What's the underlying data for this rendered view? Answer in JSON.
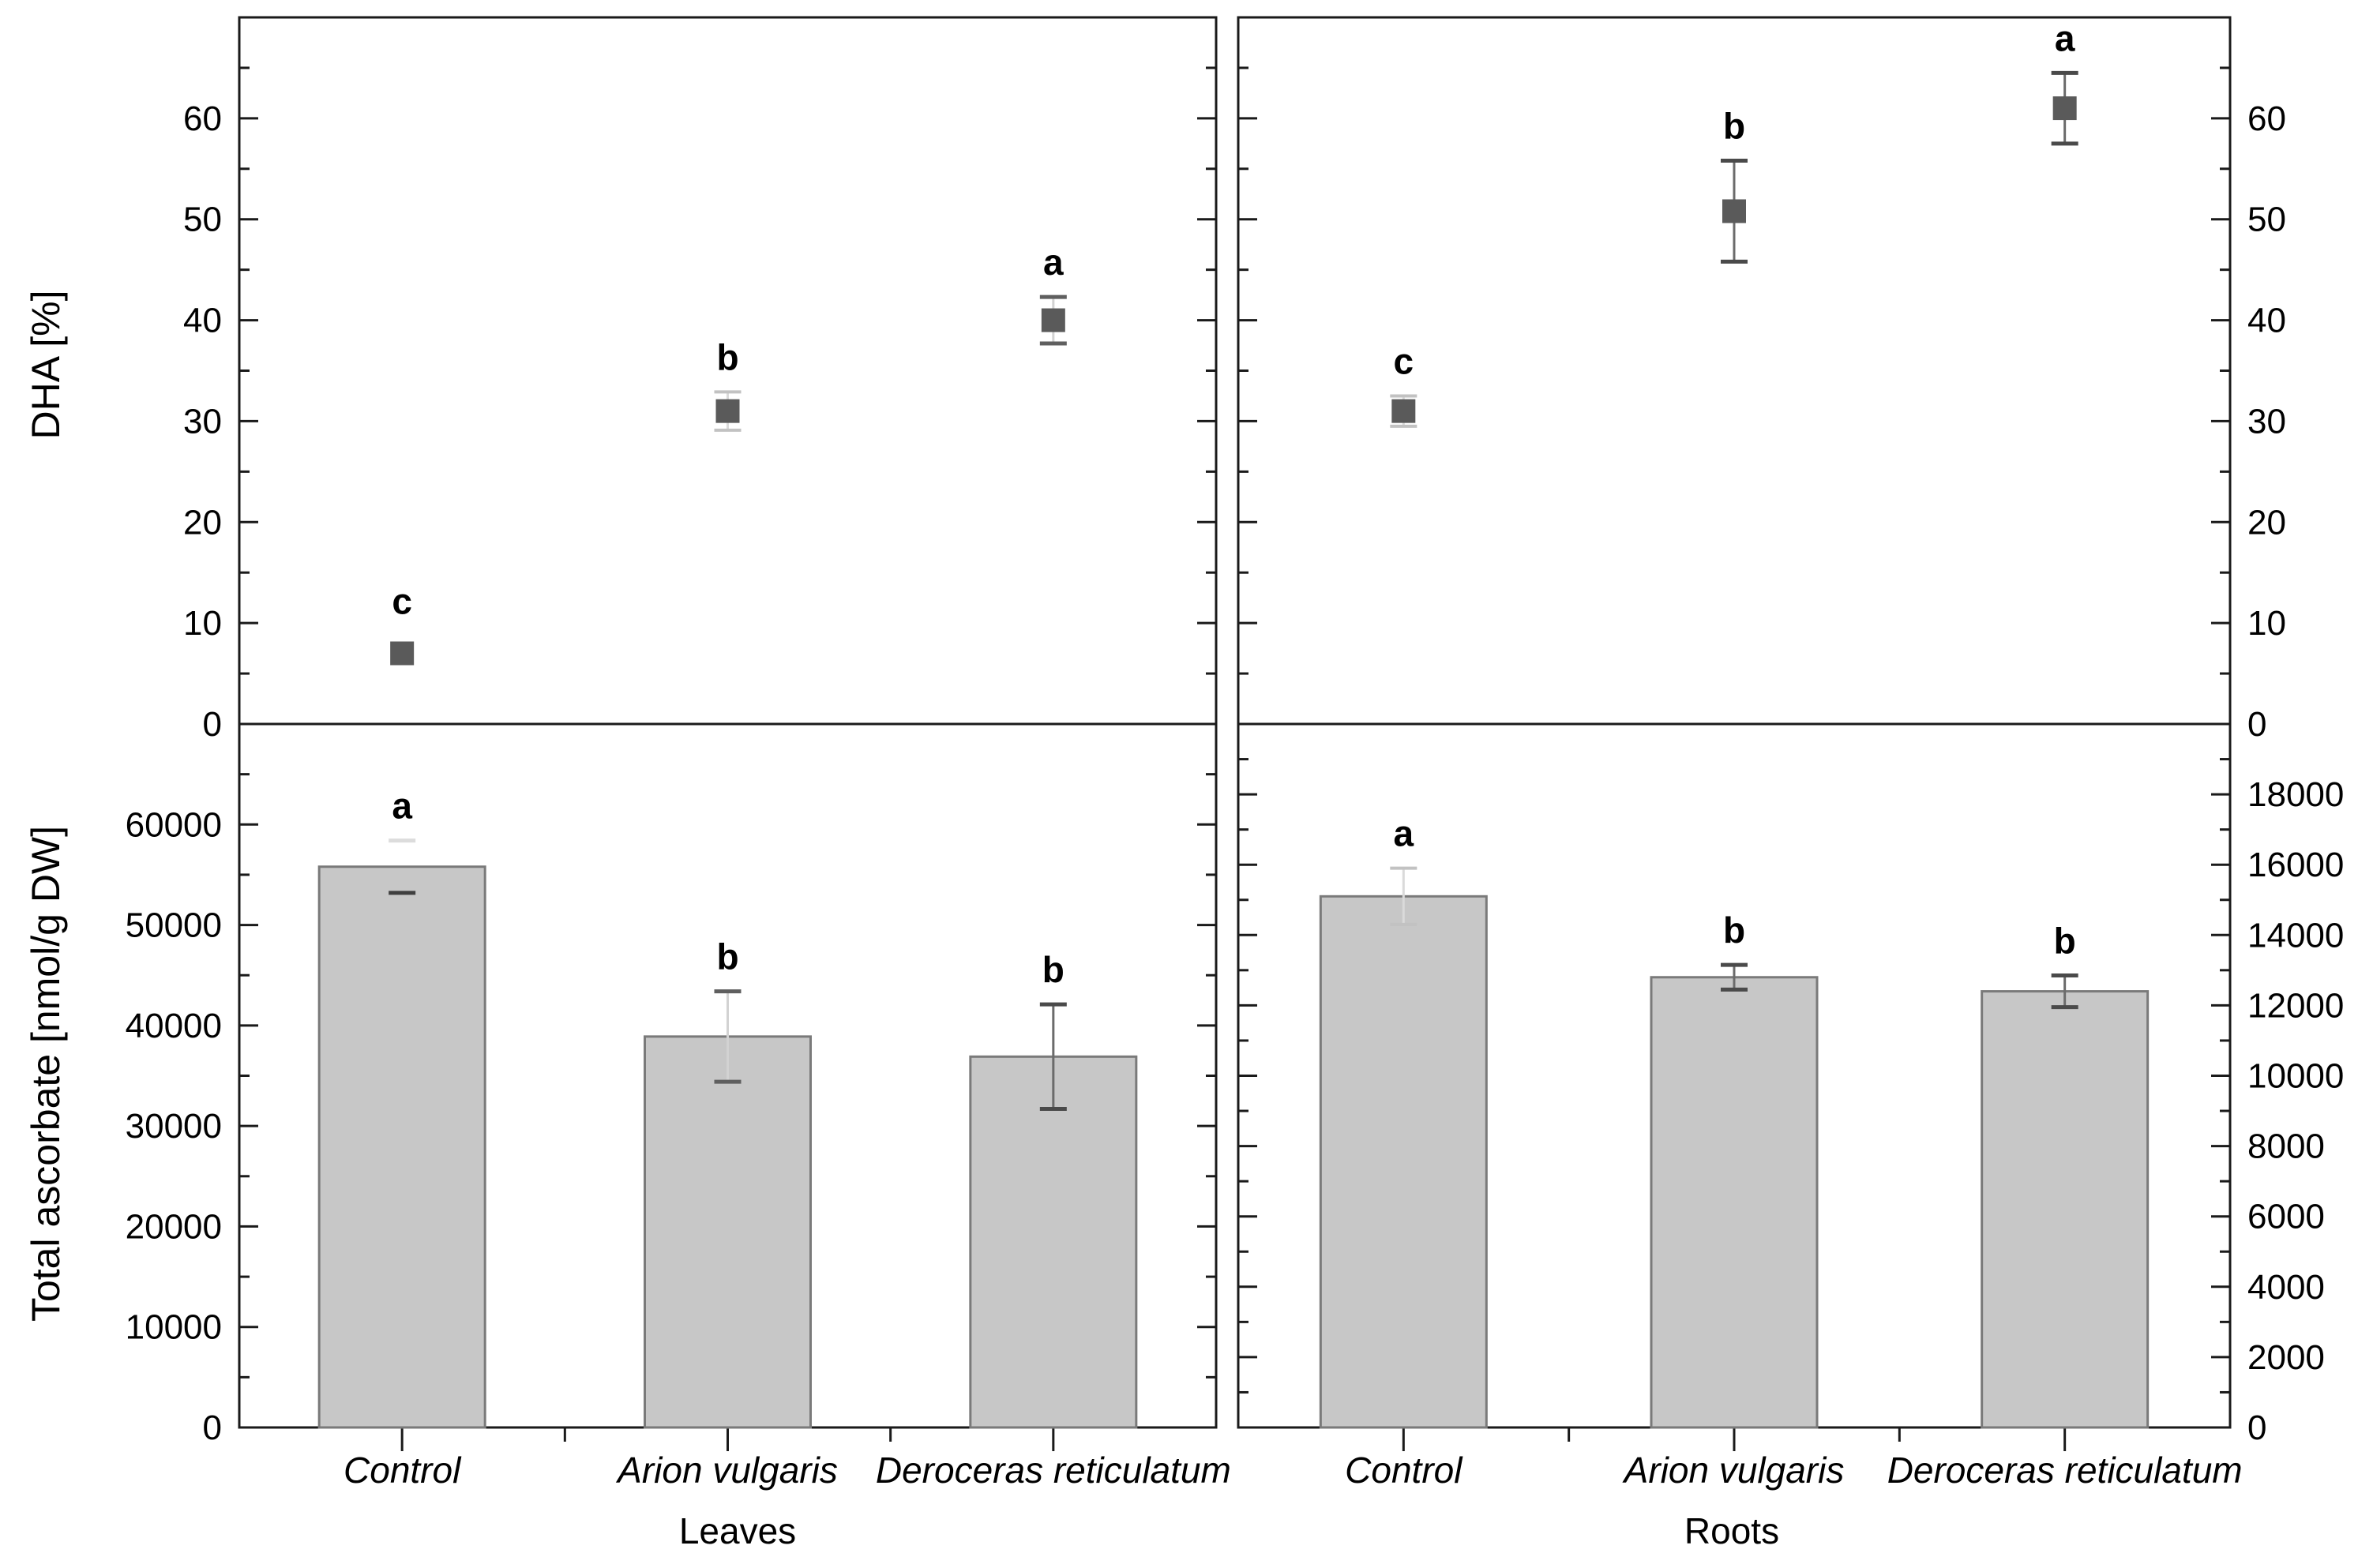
{
  "figure": {
    "background": "#ffffff",
    "axis_color": "#1a1a1a",
    "marker_color": "#5a5a5a",
    "bar_fill": "#c7c7c7",
    "bar_stroke": "#7a7a7a",
    "ylabel_top": "DHA [%]",
    "ylabel_bottom": "Total ascorbate [nmol/g DW]",
    "caption_left": "Leaves",
    "caption_right": "Roots",
    "categories": [
      "Control",
      "Arion vulgaris",
      "Deroceras reticulatum"
    ],
    "significance_letters_meaning": ""
  },
  "chart_data": [
    {
      "id": "dha-leaves",
      "type": "scatter",
      "row": "top",
      "col": "left",
      "group": "Leaves",
      "ylabel": "DHA [%]",
      "categories": [
        "Control",
        "Arion vulgaris",
        "Deroceras reticulatum"
      ],
      "values": [
        7.0,
        31.0,
        40.0
      ],
      "errors": [
        0.5,
        1.9,
        2.3
      ],
      "error_styles": [
        "none",
        "light",
        "caps-dark-line-light"
      ],
      "letters": [
        "c",
        "b",
        "a"
      ],
      "ylim": [
        0,
        70
      ],
      "tick_major": 10,
      "tick_minor": 5,
      "labeled_max": 60,
      "axis_label_side": "left",
      "grid": false
    },
    {
      "id": "dha-roots",
      "type": "scatter",
      "row": "top",
      "col": "right",
      "group": "Roots",
      "ylabel": "DHA [%]",
      "categories": [
        "Control",
        "Arion vulgaris",
        "Deroceras reticulatum"
      ],
      "values": [
        31.0,
        50.8,
        61.0
      ],
      "errors": [
        1.5,
        5.0,
        3.5
      ],
      "error_styles": [
        "light",
        "dark",
        "dark"
      ],
      "letters": [
        "c",
        "b",
        "a"
      ],
      "ylim": [
        0,
        70
      ],
      "tick_major": 10,
      "tick_minor": 5,
      "labeled_max": 60,
      "axis_label_side": "right",
      "grid": false
    },
    {
      "id": "ascorbate-leaves",
      "type": "bar",
      "row": "bottom",
      "col": "left",
      "group": "Leaves",
      "ylabel": "Total ascorbate [nmol/g DW]",
      "categories": [
        "Control",
        "Arion vulgaris",
        "Deroceras reticulatum"
      ],
      "values": [
        55800,
        38900,
        36900
      ],
      "errors": [
        2600,
        4500,
        5200
      ],
      "error_styles": [
        "upper-light-lower-dark",
        "caps-dark-line-light",
        "dark"
      ],
      "letters": [
        "a",
        "b",
        "b"
      ],
      "ylim": [
        0,
        70000
      ],
      "tick_major": 10000,
      "tick_minor": 5000,
      "labeled_max": 60000,
      "axis_label_side": "left",
      "grid": false
    },
    {
      "id": "ascorbate-roots",
      "type": "bar",
      "row": "bottom",
      "col": "right",
      "group": "Roots",
      "ylabel": "Total ascorbate [nmol/g DW]",
      "categories": [
        "Control",
        "Arion vulgaris",
        "Deroceras reticulatum"
      ],
      "values": [
        15100,
        12800,
        12400
      ],
      "errors": [
        800,
        350,
        450
      ],
      "error_styles": [
        "light",
        "dark",
        "dark"
      ],
      "letters": [
        "a",
        "b",
        "b"
      ],
      "ylim": [
        0,
        20000
      ],
      "tick_major": 2000,
      "tick_minor": 1000,
      "labeled_max": 18000,
      "axis_label_side": "right",
      "grid": false
    }
  ]
}
